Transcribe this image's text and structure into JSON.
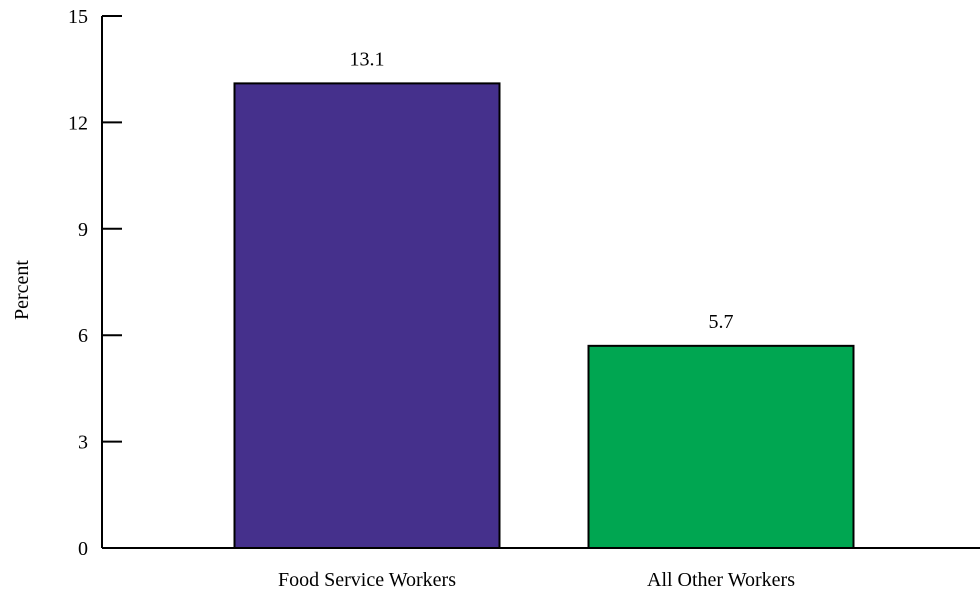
{
  "chart_data": {
    "type": "bar",
    "title": "",
    "xlabel": "",
    "ylabel": "Percent",
    "categories": [
      "Food Service Workers",
      "All Other Workers"
    ],
    "values": [
      13.1,
      5.7
    ],
    "value_labels": [
      "13.1",
      "5.7"
    ],
    "colors": [
      "#45308c",
      "#00a651"
    ],
    "ylim": [
      0,
      15
    ],
    "yticks": [
      0,
      3,
      6,
      9,
      12,
      15
    ],
    "grid": false,
    "legend": "none"
  }
}
